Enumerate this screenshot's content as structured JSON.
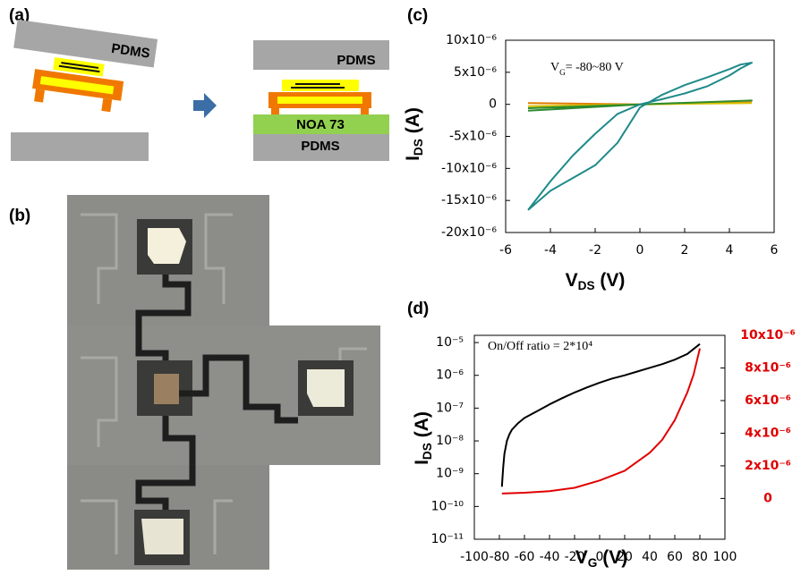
{
  "panels": {
    "a": {
      "label": "(a)",
      "texts": [
        "PDMS",
        "PDMS",
        "NOA 73",
        "PDMS"
      ]
    },
    "b": {
      "label": "(b)"
    }
  },
  "chart_data": [
    {
      "type": "line",
      "panel": "(c)",
      "xlabel": [
        "V",
        "DS",
        " (V)"
      ],
      "ylabel": [
        "I",
        "DS",
        " (A)"
      ],
      "annotation": [
        "V",
        "G",
        "= -80~80 V"
      ],
      "xlim": [
        -6,
        6
      ],
      "xticks": [
        -6,
        -4,
        -2,
        0,
        2,
        4,
        6
      ],
      "ylim": [
        -2e-05,
        1e-05
      ],
      "yticks": [
        {
          "value": 1e-05,
          "label": "10x10⁻⁶"
        },
        {
          "value": 5e-06,
          "label": "5x10⁻⁶"
        },
        0,
        {
          "value": -5e-06,
          "label": "-5x10⁻⁶"
        },
        {
          "value": -1e-05,
          "label": "-10x10⁻⁶"
        },
        {
          "value": -1.5e-05,
          "label": "-15x10⁻⁶"
        },
        {
          "value": -2e-05,
          "label": "-20x10⁻⁶"
        }
      ],
      "series": [
        {
          "color": "#e07b00",
          "x": [
            -5,
            0,
            5
          ],
          "values": [
            2e-07,
            0,
            3e-07
          ]
        },
        {
          "color": "#d8c000",
          "x": [
            -5,
            0,
            5
          ],
          "values": [
            -3e-07,
            0,
            2e-07
          ]
        },
        {
          "color": "#2e8b2e",
          "x": [
            -5,
            0,
            5,
            0,
            -5
          ],
          "values": [
            -1e-06,
            0,
            6e-07,
            0,
            -6e-07
          ]
        },
        {
          "color": "#1f8a8a",
          "x": [
            -5,
            -4,
            -3,
            -2,
            -1,
            0,
            1,
            2,
            3,
            4,
            4.5,
            5,
            4.5,
            4,
            3,
            2,
            1,
            0,
            -1,
            -2,
            -3,
            -4,
            -5
          ],
          "values": [
            -1.65e-05,
            -1.35e-05,
            -1.15e-05,
            -9.5e-06,
            -6e-06,
            -5e-07,
            1.5e-06,
            3e-06,
            4.2e-06,
            5.5e-06,
            6.2e-06,
            6.5e-06,
            5.6e-06,
            4.5e-06,
            2.8e-06,
            1.7e-06,
            8e-07,
            0,
            -1.5e-06,
            -4.6e-06,
            -8e-06,
            -1.2e-05,
            -1.65e-05
          ]
        }
      ]
    },
    {
      "type": "line",
      "panel": "(d)",
      "xlabel": [
        "V",
        "G",
        " (V)"
      ],
      "ylabel": [
        "I",
        "DS",
        " (A)"
      ],
      "annotation": "On/Off ratio = 2*10⁴",
      "xlim": [
        -100,
        100
      ],
      "xticks": [
        -100,
        -80,
        -60,
        -40,
        -20,
        0,
        20,
        40,
        60,
        80,
        100
      ],
      "ylog": true,
      "ylim": [
        1e-11,
        1.66e-05
      ],
      "yticks": [
        {
          "value": 1e-05,
          "label": "10⁻⁵"
        },
        {
          "value": 1e-06,
          "label": "10⁻⁶"
        },
        {
          "value": 1e-07,
          "label": "10⁻⁷"
        },
        {
          "value": 1e-08,
          "label": "10⁻⁸"
        },
        {
          "value": 1e-09,
          "label": "10⁻⁹"
        },
        {
          "value": 1e-10,
          "label": "10⁻¹⁰"
        },
        {
          "value": 1e-11,
          "label": "10⁻¹¹"
        }
      ],
      "y2lim": [
        -2.5e-06,
        1e-05
      ],
      "y2color": "#e00000",
      "y2ticks": [
        {
          "value": 1e-05,
          "label": "10x10⁻⁶"
        },
        {
          "value": 8e-06,
          "label": "8x10⁻⁶"
        },
        {
          "value": 6e-06,
          "label": "6x10⁻⁶"
        },
        {
          "value": 4e-06,
          "label": "4x10⁻⁶"
        },
        {
          "value": 2e-06,
          "label": "2x10⁻⁶"
        },
        0
      ],
      "series": [
        {
          "color": "#000000",
          "x": [
            -78,
            -77,
            -76,
            -74,
            -72,
            -70,
            -65,
            -60,
            -50,
            -40,
            -30,
            -20,
            -10,
            0,
            10,
            20,
            30,
            40,
            50,
            60,
            70,
            80
          ],
          "values": [
            4e-10,
            1.5e-09,
            4e-09,
            1e-08,
            1.6e-08,
            2.2e-08,
            3.5e-08,
            5e-08,
            8e-08,
            1.3e-07,
            2e-07,
            3e-07,
            4.3e-07,
            6e-07,
            8e-07,
            1e-06,
            1.3e-06,
            1.7e-06,
            2.2e-06,
            3e-06,
            4.5e-06,
            9e-06
          ]
        },
        {
          "color": "#e00000",
          "axis": "y2",
          "x": [
            -78,
            -60,
            -40,
            -20,
            0,
            20,
            40,
            50,
            60,
            70,
            75,
            80
          ],
          "values": [
            3e-07,
            3.5e-07,
            4.5e-07,
            6.5e-07,
            1.1e-06,
            1.7e-06,
            2.8e-06,
            3.6e-06,
            4.8e-06,
            6.5e-06,
            7.6e-06,
            9.2e-06
          ]
        }
      ]
    }
  ]
}
